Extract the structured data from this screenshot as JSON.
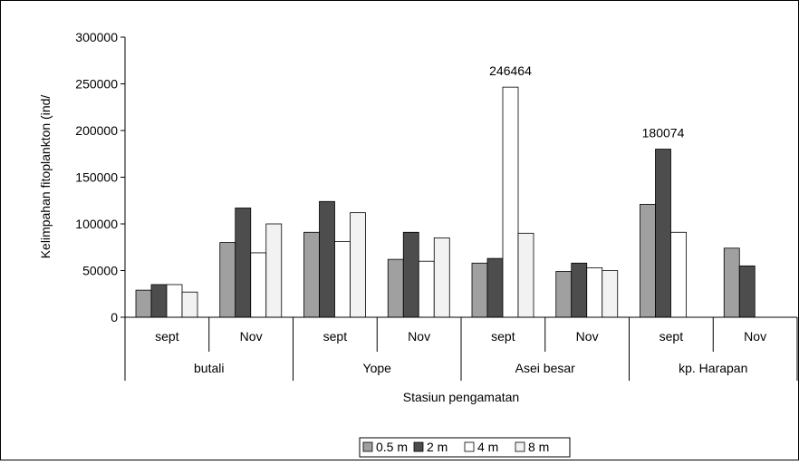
{
  "chart_data": {
    "type": "bar",
    "ylabel": "Kelimpahan fitoplankton (ind/",
    "xlabel": "Stasiun pengamatan",
    "ylim": [
      0,
      300000
    ],
    "yticks": [
      "0",
      "50000",
      "100000",
      "150000",
      "200000",
      "250000",
      "300000"
    ],
    "grid": false,
    "legend_position": "bottom",
    "stations": [
      "butali",
      "Yope",
      "Asei besar",
      "kp. Harapan"
    ],
    "categories": [
      "sept",
      "Nov",
      "sept",
      "Nov",
      "sept",
      "Nov",
      "sept",
      "Nov"
    ],
    "series": [
      {
        "name": "0.5 m",
        "color": "#a0a0a0",
        "values": [
          29000,
          80000,
          91000,
          62000,
          58000,
          49000,
          121000,
          74000
        ]
      },
      {
        "name": "2 m",
        "color": "#4d4d4d",
        "values": [
          35000,
          117000,
          124000,
          91000,
          63000,
          58000,
          180074,
          55000
        ]
      },
      {
        "name": "4 m",
        "color": "#ffffff",
        "values": [
          35000,
          69000,
          81000,
          60000,
          246464,
          53000,
          91000,
          0
        ]
      },
      {
        "name": "8 m",
        "color": "#f2f2f2",
        "values": [
          27000,
          100000,
          112000,
          85000,
          90000,
          50000,
          0,
          0
        ]
      }
    ],
    "annotations": [
      "246464",
      "180074"
    ]
  }
}
